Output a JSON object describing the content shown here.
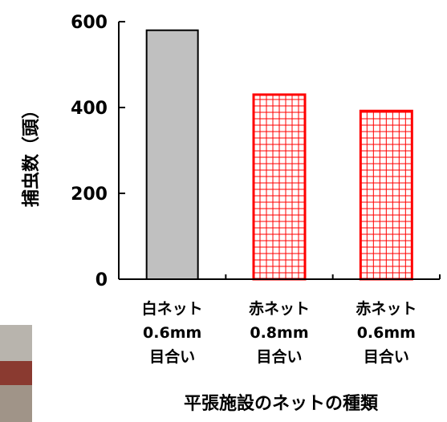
{
  "chart_data": {
    "type": "bar",
    "categories": [
      [
        "白ネット",
        "0.6mm",
        "目合い"
      ],
      [
        "赤ネット",
        "0.8mm",
        "目合い"
      ],
      [
        "赤ネット",
        "0.6mm",
        "目合い"
      ]
    ],
    "values": [
      580,
      430,
      392
    ],
    "bar_styles": [
      {
        "fill": "#c0c0c0",
        "stroke": "#000000",
        "pattern": "solid"
      },
      {
        "fill": "#ffffff",
        "stroke": "#ff0000",
        "pattern": "grid",
        "grid_color": "#ff0000"
      },
      {
        "fill": "#ffffff",
        "stroke": "#ff0000",
        "pattern": "grid",
        "grid_color": "#ff0000"
      }
    ],
    "xlabel": "平張施設のネットの種類",
    "ylabel": "捕虫数（頭）",
    "ylim": [
      0,
      600
    ],
    "yticks": [
      0,
      200,
      400,
      600
    ],
    "grid": false,
    "legend": "none"
  }
}
